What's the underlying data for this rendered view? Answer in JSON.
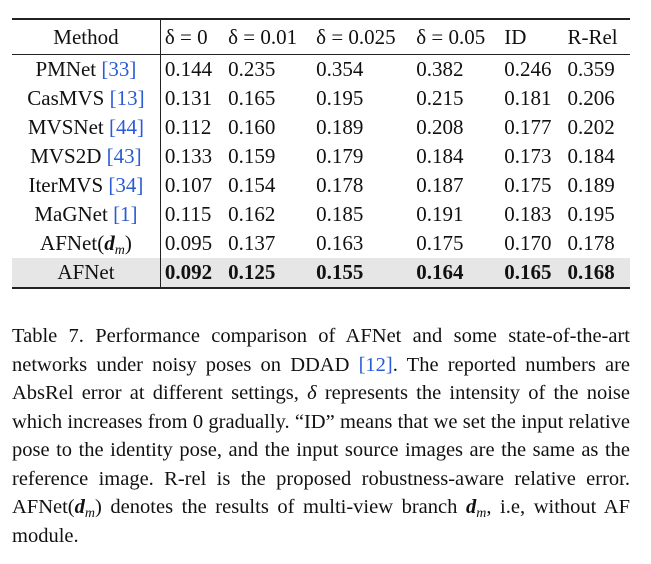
{
  "table": {
    "headers": [
      "Method",
      "δ = 0",
      "δ = 0.01",
      "δ = 0.025",
      "δ = 0.05",
      "ID",
      "R-Rel"
    ],
    "rows": [
      {
        "method": "PMNet",
        "ref": "[33]",
        "values": [
          "0.144",
          "0.235",
          "0.354",
          "0.382",
          "0.246",
          "0.359"
        ]
      },
      {
        "method": "CasMVS",
        "ref": "[13]",
        "values": [
          "0.131",
          "0.165",
          "0.195",
          "0.215",
          "0.181",
          "0.206"
        ]
      },
      {
        "method": "MVSNet",
        "ref": "[44]",
        "values": [
          "0.112",
          "0.160",
          "0.189",
          "0.208",
          "0.177",
          "0.202"
        ]
      },
      {
        "method": "MVS2D",
        "ref": "[43]",
        "values": [
          "0.133",
          "0.159",
          "0.179",
          "0.184",
          "0.173",
          "0.184"
        ]
      },
      {
        "method": "IterMVS",
        "ref": "[34]",
        "values": [
          "0.107",
          "0.154",
          "0.178",
          "0.187",
          "0.175",
          "0.189"
        ]
      },
      {
        "method": "MaGNet",
        "ref": "[1]",
        "values": [
          "0.115",
          "0.162",
          "0.185",
          "0.191",
          "0.183",
          "0.195"
        ]
      },
      {
        "method": "AFNet(",
        "ref": "",
        "values": [
          "0.095",
          "0.137",
          "0.163",
          "0.175",
          "0.170",
          "0.178"
        ]
      },
      {
        "method": "AFNet",
        "ref": "",
        "values": [
          "0.092",
          "0.125",
          "0.155",
          "0.164",
          "0.165",
          "0.168"
        ]
      }
    ],
    "afnet_dm_math": {
      "d": "d",
      "sub": "m",
      "close": ")"
    }
  },
  "caption": {
    "label": "Table 7.",
    "part1": " Performance comparison of AFNet and some state-of-the-art networks under noisy poses on DDAD ",
    "ref": "[12]",
    "part2": ". The reported numbers are AbsRel error at different settings, ",
    "delta": "δ",
    "part3": " represents the intensity of the noise which increases from 0 gradually. “ID” means that we set the input relative pose to the identity pose, and the input source images are the same as the reference image. R-rel is the proposed robustness-aware relative error. AFNet(",
    "dm_d": "d",
    "dm_sub": "m",
    "part4": ") denotes the results of multi-view branch ",
    "dm2_d": "d",
    "dm2_sub": "m",
    "part5": ", i.e, without AF module."
  }
}
